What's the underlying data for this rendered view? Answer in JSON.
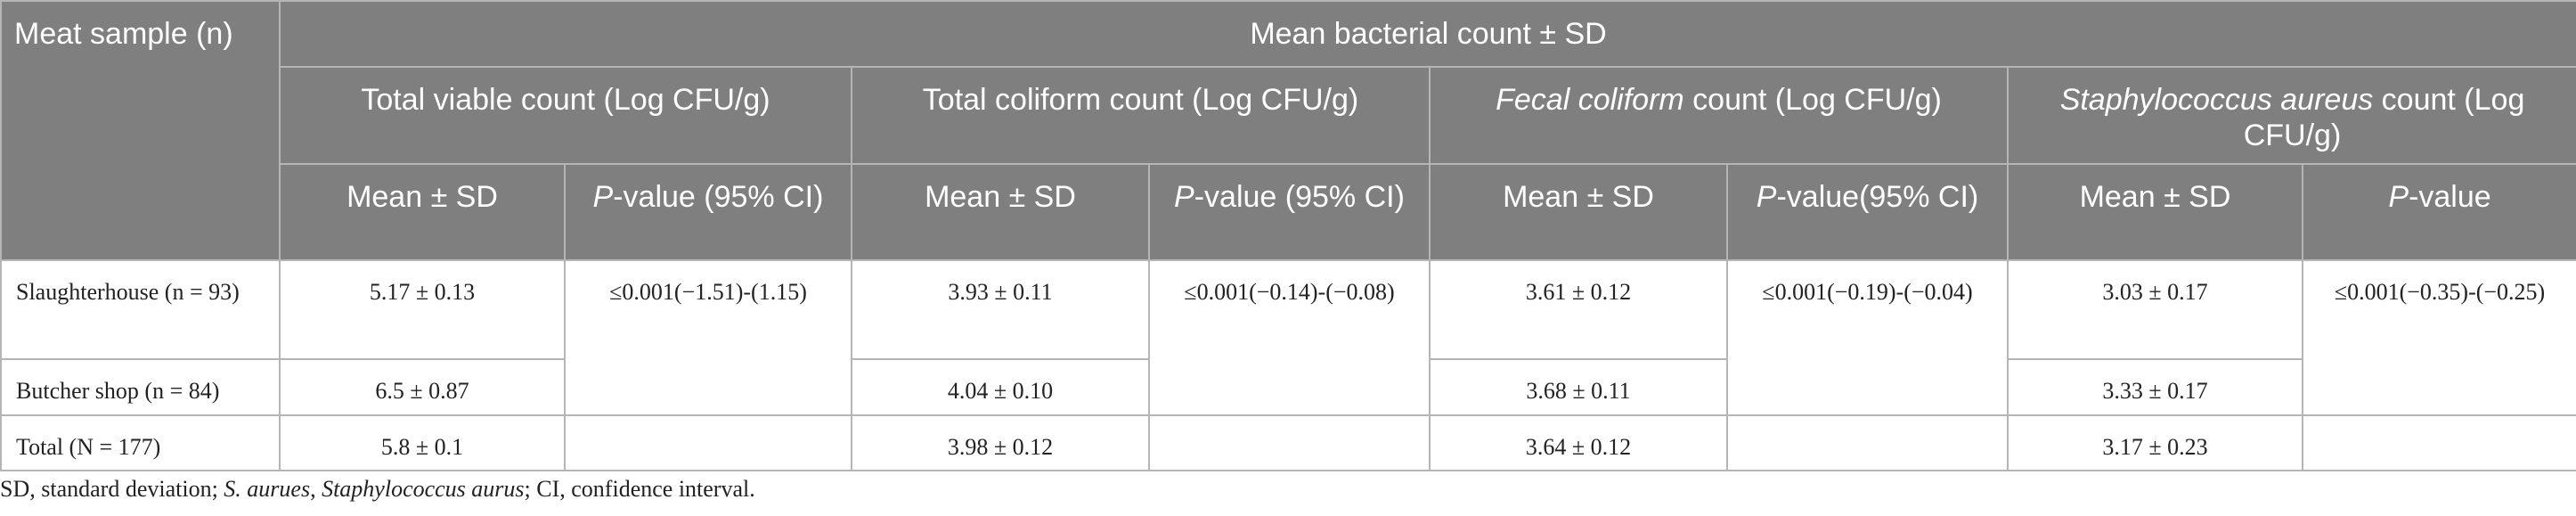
{
  "table": {
    "header": {
      "row_label": "Meat sample (n)",
      "group": "Mean bacterial count ± SD",
      "measures": [
        [
          "Total viable count (Log CFU/g)"
        ],
        [
          "Total coliform count (Log CFU/g)"
        ],
        [
          "Fecal coliform",
          " count (Log CFU/g)"
        ],
        [
          "Staphylococcus aureus",
          " count (Log CFU/g)"
        ]
      ],
      "subheaders": [
        "Mean ± SD",
        [
          "P",
          "-value (95% CI)"
        ],
        "Mean ± SD",
        [
          "P",
          "-value (95% CI)"
        ],
        "Mean ± SD",
        [
          "P",
          "-value(95% CI)"
        ],
        "Mean ± SD",
        [
          "P",
          "-value"
        ]
      ]
    },
    "rows": [
      {
        "label": "Slaughterhouse (n = 93)",
        "cells": [
          "5.17 ± 0.13",
          "≤0.001(−1.51)-(1.15)",
          "3.93 ± 0.11",
          "≤0.001(−0.14)-(−0.08)",
          "3.61 ± 0.12",
          "≤0.001(−0.19)-(−0.04)",
          "3.03 ± 0.17",
          "≤0.001(−0.35)-(−0.25)"
        ]
      },
      {
        "label": "Butcher shop (n = 84)",
        "cells": [
          "6.5 ± 0.87",
          "4.04 ± 0.10",
          "3.68 ± 0.11",
          "3.33 ± 0.17"
        ]
      },
      {
        "label": "Total (N = 177)",
        "cells": [
          "5.8 ± 0.1",
          "3.98 ± 0.12",
          "3.64 ± 0.12",
          "3.17 ± 0.23"
        ]
      }
    ]
  },
  "footnote": [
    "SD, standard deviation; ",
    "S. aurues",
    ", ",
    "Staphylococcus aurus",
    "; CI, confidence interval."
  ]
}
